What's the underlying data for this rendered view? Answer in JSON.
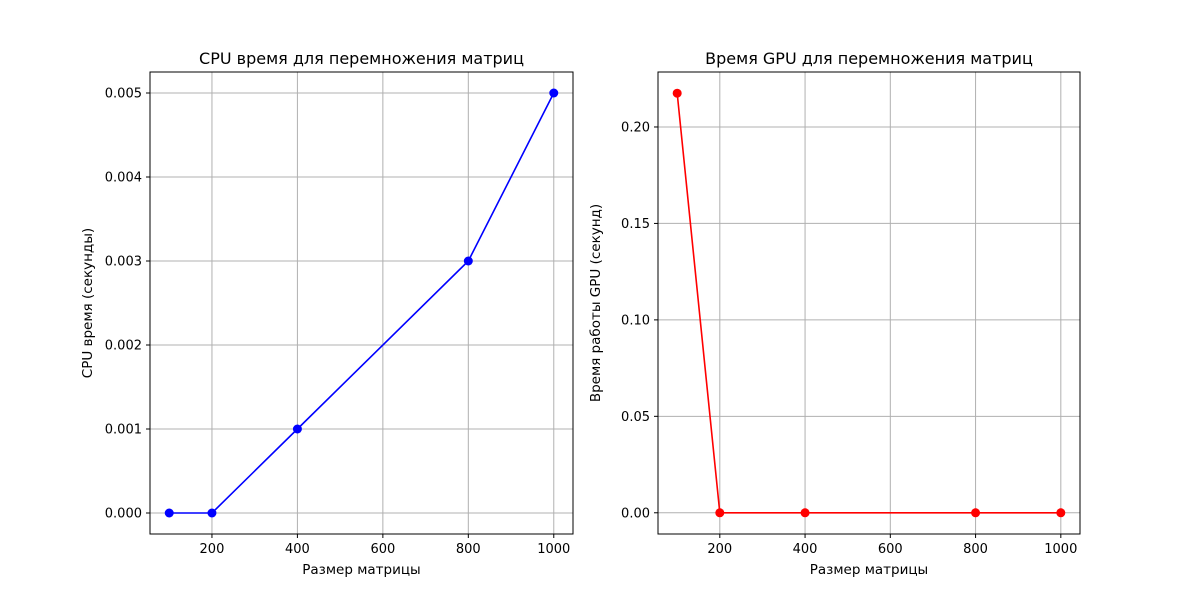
{
  "chart_data": [
    {
      "type": "line",
      "title": "CPU время для перемножения матриц",
      "xlabel": "Размер матрицы",
      "ylabel": "CPU время (секунды)",
      "x": [
        100,
        200,
        400,
        800,
        1000
      ],
      "series": [
        {
          "values": [
            0.0,
            0.0,
            0.001,
            0.003,
            0.005
          ],
          "color": "#0000ff",
          "marker": "circle"
        }
      ],
      "xlim": [
        55,
        1045
      ],
      "ylim": [
        -0.00025,
        0.00525
      ],
      "xticks": [
        200,
        400,
        600,
        800,
        1000
      ],
      "xtick_labels": [
        "200",
        "400",
        "600",
        "800",
        "1000"
      ],
      "yticks": [
        0.0,
        0.001,
        0.002,
        0.003,
        0.004,
        0.005
      ],
      "ytick_labels": [
        "0.000",
        "0.001",
        "0.002",
        "0.003",
        "0.004",
        "0.005"
      ],
      "grid": true
    },
    {
      "type": "line",
      "title": "Время GPU для перемножения матриц",
      "xlabel": "Размер матрицы",
      "ylabel": "Время работы GPU (секунд)",
      "x": [
        100,
        200,
        400,
        800,
        1000
      ],
      "series": [
        {
          "values": [
            0.2175,
            0.0,
            0.0,
            0.0,
            0.0
          ],
          "color": "#ff0000",
          "marker": "circle"
        }
      ],
      "xlim": [
        55,
        1045
      ],
      "ylim": [
        -0.011,
        0.2285
      ],
      "xticks": [
        200,
        400,
        600,
        800,
        1000
      ],
      "xtick_labels": [
        "200",
        "400",
        "600",
        "800",
        "1000"
      ],
      "yticks": [
        0.0,
        0.05,
        0.1,
        0.15,
        0.2
      ],
      "ytick_labels": [
        "0.00",
        "0.05",
        "0.10",
        "0.15",
        "0.20"
      ],
      "grid": true
    }
  ]
}
